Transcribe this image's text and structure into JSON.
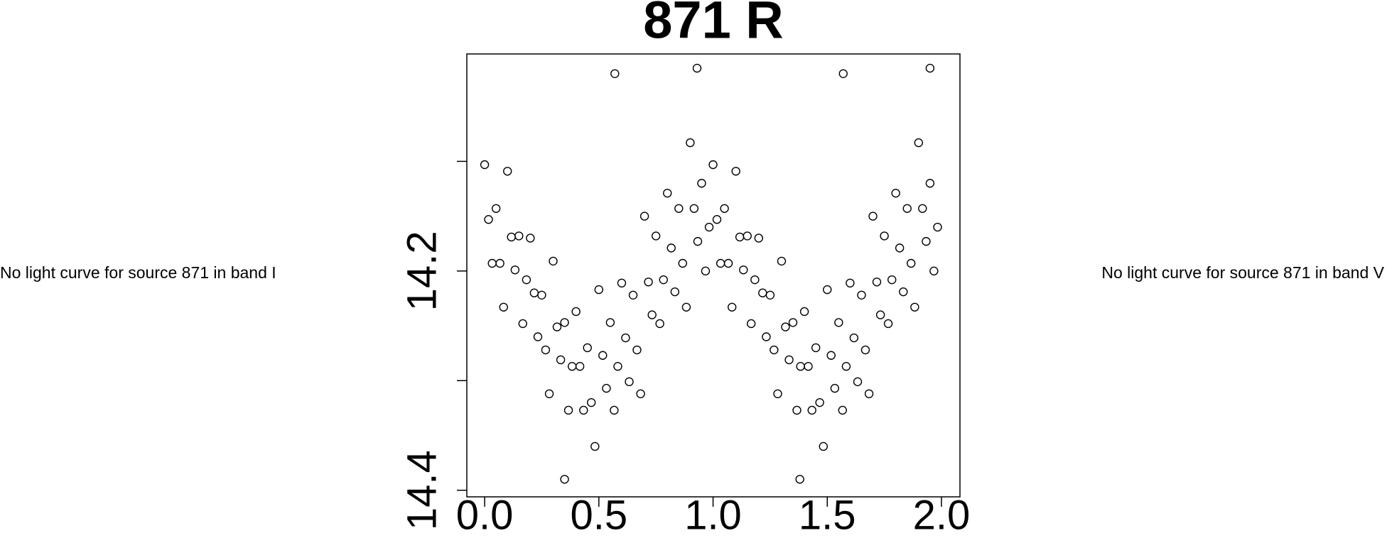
{
  "left_note": "No light curve for source 871 in band I",
  "right_note": "No light curve for source 871 in band V",
  "chart_data": {
    "type": "scatter",
    "title": "871 R",
    "color": "#000000",
    "marker": "open-circle",
    "xlim": [
      -0.078,
      2.081
    ],
    "ylim": [
      14.406,
      14.002
    ],
    "xticks": [
      {
        "value": 0,
        "label": "0.0"
      },
      {
        "value": 0.5,
        "label": "0.5"
      },
      {
        "value": 1,
        "label": "1.0"
      },
      {
        "value": 1.5,
        "label": "1.5"
      },
      {
        "value": 2,
        "label": "2.0"
      }
    ],
    "yticks": [
      {
        "value": 14.1,
        "label": null
      },
      {
        "value": 14.2,
        "label": "14.2"
      },
      {
        "value": 14.3,
        "label": null
      },
      {
        "value": 14.4,
        "label": "14.4"
      }
    ],
    "x": [
      0,
      0.017,
      0.033,
      0.05,
      0.067,
      0.083,
      0.1,
      0.117,
      0.133,
      0.15,
      0.167,
      0.183,
      0.2,
      0.217,
      0.233,
      0.25,
      0.267,
      0.283,
      0.3,
      0.317,
      0.333,
      0.35,
      0.367,
      0.383,
      0.4,
      0.417,
      0.433,
      0.45,
      0.467,
      0.483,
      0.5,
      0.517,
      0.533,
      0.55,
      0.567,
      0.583,
      0.6,
      0.617,
      0.633,
      0.65,
      0.667,
      0.683,
      0.7,
      0.717,
      0.733,
      0.75,
      0.767,
      0.783,
      0.8,
      0.817,
      0.833,
      0.85,
      0.867,
      0.883,
      0.9,
      0.917,
      0.933,
      0.95,
      0.967,
      0.983,
      1,
      1.017,
      1.033,
      1.05,
      1.067,
      1.083,
      1.1,
      1.117,
      1.133,
      1.15,
      1.167,
      1.183,
      1.2,
      1.217,
      1.233,
      1.25,
      1.267,
      1.283,
      1.3,
      1.317,
      1.333,
      1.35,
      1.367,
      1.383,
      1.4,
      1.417,
      1.433,
      1.45,
      1.467,
      1.483,
      1.5,
      1.517,
      1.533,
      1.55,
      1.567,
      1.583,
      1.6,
      1.617,
      1.633,
      1.65,
      1.667,
      1.683,
      1.7,
      1.717,
      1.733,
      1.75,
      1.767,
      1.783,
      1.8,
      1.817,
      1.833,
      1.85,
      1.867,
      1.883,
      1.9,
      1.917,
      1.933,
      1.95,
      1.967,
      1.983,
      0.57,
      0.93,
      1.57,
      1.95,
      0.35,
      1.38
    ],
    "y": [
      14.103,
      14.153,
      14.193,
      14.143,
      14.193,
      14.233,
      14.109,
      14.169,
      14.199,
      14.168,
      14.248,
      14.208,
      14.17,
      14.22,
      14.26,
      14.222,
      14.272,
      14.312,
      14.191,
      14.251,
      14.281,
      14.247,
      14.327,
      14.287,
      14.237,
      14.287,
      14.327,
      14.27,
      14.32,
      14.36,
      14.217,
      14.277,
      14.307,
      14.247,
      14.327,
      14.287,
      14.211,
      14.261,
      14.301,
      14.222,
      14.272,
      14.312,
      14.15,
      14.21,
      14.24,
      14.168,
      14.248,
      14.208,
      14.129,
      14.179,
      14.219,
      14.143,
      14.193,
      14.233,
      14.083,
      14.143,
      14.173,
      14.12,
      14.2,
      14.16,
      14.103,
      14.153,
      14.193,
      14.143,
      14.193,
      14.233,
      14.109,
      14.169,
      14.199,
      14.168,
      14.248,
      14.208,
      14.17,
      14.22,
      14.26,
      14.222,
      14.272,
      14.312,
      14.191,
      14.251,
      14.281,
      14.247,
      14.327,
      14.287,
      14.237,
      14.287,
      14.327,
      14.27,
      14.32,
      14.36,
      14.217,
      14.277,
      14.307,
      14.247,
      14.327,
      14.287,
      14.211,
      14.261,
      14.301,
      14.222,
      14.272,
      14.312,
      14.15,
      14.21,
      14.24,
      14.168,
      14.248,
      14.208,
      14.129,
      14.179,
      14.219,
      14.143,
      14.193,
      14.233,
      14.083,
      14.143,
      14.173,
      14.12,
      14.2,
      14.16,
      14.02,
      14.015,
      14.02,
      14.015,
      14.39,
      14.39
    ]
  }
}
